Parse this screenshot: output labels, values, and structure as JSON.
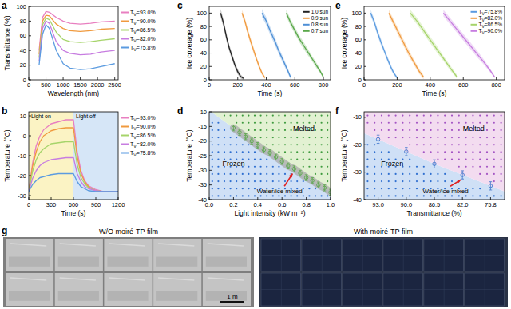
{
  "chart_data": [
    {
      "panel": "a",
      "type": "line",
      "x_label": "Wavelength (nm)",
      "y_label": "Transmittance (%)",
      "xlim": [
        0,
        2600
      ],
      "xticks": [
        0,
        500,
        1000,
        1500,
        2000,
        2500
      ],
      "ylim": [
        0,
        100
      ],
      "yticks": [
        0,
        20,
        40,
        60,
        80,
        100
      ],
      "legend": "right",
      "x": [
        300,
        400,
        500,
        600,
        800,
        1000,
        1200,
        1500,
        1800,
        2100,
        2500
      ],
      "series": [
        {
          "name": "TV=93.0%",
          "color": "#e87fc0",
          "values": [
            40,
            85,
            93,
            92,
            85,
            80,
            77,
            76,
            77,
            79,
            80
          ]
        },
        {
          "name": "TV=90.0%",
          "color": "#f09a3e",
          "values": [
            35,
            80,
            88,
            87,
            76,
            70,
            67,
            66,
            67,
            69,
            70
          ]
        },
        {
          "name": "TV=86.5%",
          "color": "#a6d46a",
          "values": [
            30,
            75,
            84,
            82,
            65,
            55,
            52,
            51,
            52,
            54,
            56
          ]
        },
        {
          "name": "TV=82.0%",
          "color": "#c77de0",
          "values": [
            25,
            70,
            80,
            77,
            52,
            40,
            36,
            34,
            35,
            38,
            40
          ]
        },
        {
          "name": "TV=75.8%",
          "color": "#5b9be0",
          "values": [
            20,
            62,
            75,
            70,
            40,
            22,
            16,
            14,
            15,
            18,
            22
          ]
        }
      ]
    },
    {
      "panel": "b",
      "type": "line",
      "x_label": "Time (s)",
      "y_label": "Temperature (°C)",
      "xlim": [
        0,
        1200
      ],
      "xticks": [
        0,
        300,
        600,
        900,
        1200
      ],
      "ylim": [
        -32,
        12
      ],
      "yticks": [
        -30,
        -20,
        -10,
        0,
        10
      ],
      "legend": "right",
      "spans": [
        {
          "label": "Light on",
          "start": 0,
          "end": 600,
          "color": "#fbf3c4"
        },
        {
          "label": "Light off",
          "start": 600,
          "end": 1200,
          "color": "#d6e6f7"
        }
      ],
      "x": [
        0,
        50,
        100,
        150,
        200,
        300,
        400,
        500,
        600,
        650,
        700,
        750,
        800,
        900,
        1000,
        1100,
        1200
      ],
      "series": [
        {
          "name": "TV=93.0%",
          "color": "#e87fc0",
          "values": [
            -28,
            -14,
            -5,
            0,
            3,
            6,
            7,
            8,
            8,
            -8,
            -17.5,
            -22.5,
            -25,
            -27,
            -28,
            -28,
            -28
          ]
        },
        {
          "name": "TV=90.0%",
          "color": "#f09a3e",
          "values": [
            -28,
            -15.5,
            -8,
            -3,
            0,
            2.5,
            3.5,
            4,
            4,
            -10.5,
            -19,
            -23,
            -25.5,
            -27.5,
            -28,
            -28,
            -28
          ]
        },
        {
          "name": "TV=86.5%",
          "color": "#a6d46a",
          "values": [
            -28,
            -18,
            -12,
            -8.5,
            -6.5,
            -4,
            -3.5,
            -3,
            -3,
            -14.5,
            -21,
            -24,
            -26,
            -27.5,
            -28,
            -28,
            -28
          ]
        },
        {
          "name": "TV=82.0%",
          "color": "#c77de0",
          "values": [
            -28,
            -21.5,
            -17.5,
            -15,
            -13.5,
            -12,
            -11.5,
            -11,
            -11,
            -19,
            -23,
            -25.5,
            -26.5,
            -27.5,
            -28,
            -28,
            -28
          ]
        },
        {
          "name": "TV=75.8%",
          "color": "#5b9be0",
          "values": [
            -28,
            -24.5,
            -22.5,
            -21,
            -20.5,
            -19.5,
            -19,
            -19,
            -19,
            -23,
            -25.5,
            -26.5,
            -27.5,
            -28,
            -28,
            -28,
            -28
          ]
        }
      ]
    },
    {
      "panel": "c",
      "type": "line",
      "x_label": "Time (s)",
      "y_label": "Ice coverage (%)",
      "xlim": [
        0,
        850
      ],
      "xticks": [
        0,
        200,
        400,
        600,
        800
      ],
      "ylim": [
        0,
        110
      ],
      "yticks": [
        0,
        20,
        40,
        60,
        80,
        100
      ],
      "legend": "upper right",
      "series": [
        {
          "name": "1.0 sun",
          "color": "#222222",
          "x": [
            80,
            100,
            120,
            140,
            160,
            180,
            200,
            220,
            240
          ],
          "values": [
            100,
            85,
            65,
            48,
            35,
            22,
            12,
            5,
            2
          ],
          "errors": [
            6,
            6,
            6,
            5,
            5,
            4,
            4,
            3,
            2
          ]
        },
        {
          "name": "0.9 sun",
          "color": "#f09a3e",
          "x": [
            230,
            250,
            270,
            290,
            310,
            330,
            350,
            370,
            390
          ],
          "values": [
            100,
            88,
            72,
            58,
            45,
            32,
            20,
            10,
            3
          ],
          "errors": [
            5,
            5,
            5,
            5,
            5,
            4,
            4,
            3,
            2
          ]
        },
        {
          "name": "0.8 sun",
          "color": "#4d8fd6",
          "x": [
            370,
            400,
            430,
            460,
            490,
            520,
            550,
            570
          ],
          "values": [
            100,
            88,
            72,
            58,
            42,
            28,
            14,
            4
          ],
          "errors": [
            6,
            6,
            6,
            6,
            5,
            5,
            4,
            3
          ]
        },
        {
          "name": "0.7 sun",
          "color": "#5aa84a",
          "x": [
            540,
            570,
            600,
            630,
            660,
            690,
            720,
            750,
            780,
            800
          ],
          "values": [
            100,
            86,
            74,
            62,
            52,
            42,
            32,
            22,
            12,
            4
          ],
          "errors": [
            5,
            5,
            5,
            5,
            5,
            5,
            4,
            4,
            3,
            2
          ]
        }
      ]
    },
    {
      "panel": "d",
      "type": "scatter",
      "x_label": "Light intensity (kW m⁻²)",
      "y_label": "Temperature (°C)",
      "xlim": [
        0,
        1
      ],
      "xticks": [
        {
          "value": 0,
          "label": "0.0"
        },
        0.2,
        0.4,
        0.6,
        0.8,
        {
          "value": 1,
          "label": "1.0"
        }
      ],
      "ylim": [
        -40,
        -10
      ],
      "yticks": [
        -40,
        -35,
        -30,
        -25,
        -20,
        -15,
        -10
      ],
      "regions": {
        "below": {
          "label": "Frozen",
          "color": "#cfe0f6"
        },
        "above": {
          "label": "Melted",
          "color": "#e2f1d2"
        },
        "boundary": {
          "label": "Water/ice mixed"
        }
      },
      "x": [
        0.2,
        0.25,
        0.3,
        0.35,
        0.4,
        0.45,
        0.5,
        0.55,
        0.6,
        0.65,
        0.7,
        0.75,
        0.8,
        0.85,
        0.9,
        0.95,
        1
      ],
      "series": [
        {
          "color": "#5aa84a",
          "marker": "open circle",
          "values": [
            -15.5,
            -17,
            -18.5,
            -20,
            -21.5,
            -23,
            -24,
            -25.5,
            -27,
            -28.5,
            -29.5,
            -31,
            -32.5,
            -33.5,
            -35,
            -36,
            -37.5
          ],
          "errors": [
            1,
            1,
            1,
            1,
            1,
            1,
            1,
            1,
            1,
            1,
            1,
            1,
            1,
            1,
            1,
            1,
            1
          ]
        }
      ]
    },
    {
      "panel": "e",
      "type": "line",
      "x_label": "Time (s)",
      "y_label": "Ice coverage (%)",
      "xlim": [
        0,
        850
      ],
      "xticks": [
        0,
        200,
        400,
        600,
        800
      ],
      "ylim": [
        0,
        110
      ],
      "yticks": [
        0,
        20,
        40,
        60,
        80,
        100
      ],
      "legend": "upper right",
      "series": [
        {
          "name": "TV=75.8%",
          "color": "#5b9be0",
          "x": [
            40,
            60,
            80,
            100,
            120,
            140,
            160,
            180,
            200
          ],
          "values": [
            100,
            88,
            72,
            58,
            45,
            32,
            20,
            10,
            3
          ],
          "errors": [
            5,
            5,
            5,
            5,
            4,
            4,
            4,
            3,
            2
          ]
        },
        {
          "name": "TV=82.0%",
          "color": "#f09a3e",
          "x": [
            150,
            180,
            210,
            240,
            270,
            300,
            330,
            360
          ],
          "values": [
            100,
            85,
            70,
            55,
            40,
            27,
            14,
            4
          ],
          "errors": [
            5,
            5,
            5,
            5,
            5,
            4,
            4,
            3
          ]
        },
        {
          "name": "TV=86.5%",
          "color": "#a6d46a",
          "x": [
            280,
            320,
            360,
            400,
            440,
            480,
            520,
            560
          ],
          "values": [
            100,
            88,
            74,
            60,
            46,
            32,
            18,
            5
          ],
          "errors": [
            5,
            5,
            5,
            5,
            5,
            4,
            4,
            3
          ]
        },
        {
          "name": "TV=90.0%",
          "color": "#c77de0",
          "x": [
            480,
            520,
            560,
            600,
            640,
            680,
            720,
            760,
            790
          ],
          "values": [
            100,
            88,
            76,
            64,
            52,
            40,
            28,
            15,
            4
          ],
          "errors": [
            5,
            5,
            5,
            5,
            5,
            5,
            4,
            3,
            2
          ]
        }
      ]
    },
    {
      "panel": "f",
      "type": "scatter",
      "x_label": "Transmittance (%)",
      "y_label": "Temperature (°C)",
      "categories": [
        "93.0",
        "90.0",
        "86.5",
        "82.0",
        "75.8"
      ],
      "ylim": [
        -40,
        -8
      ],
      "yticks": [
        -40,
        -30,
        -20,
        -10
      ],
      "regions": {
        "below": {
          "label": "Frozen",
          "color": "#cfe0f6"
        },
        "above": {
          "label": "Melted",
          "color": "#f3dcf0"
        },
        "boundary": {
          "label": "Water/ice mixed"
        }
      },
      "series": [
        {
          "color": "#3f74cc",
          "marker": "open circle",
          "values": [
            -18,
            -22.5,
            -27,
            -31,
            -35
          ],
          "errors": [
            1.5,
            1.5,
            1.5,
            1.5,
            1.5
          ]
        }
      ]
    }
  ],
  "photos": {
    "panel": "g",
    "left": {
      "caption": "W/O moiré-TP film",
      "scale_bar": "1 m"
    },
    "right": {
      "caption": "With moiré-TP film"
    }
  }
}
